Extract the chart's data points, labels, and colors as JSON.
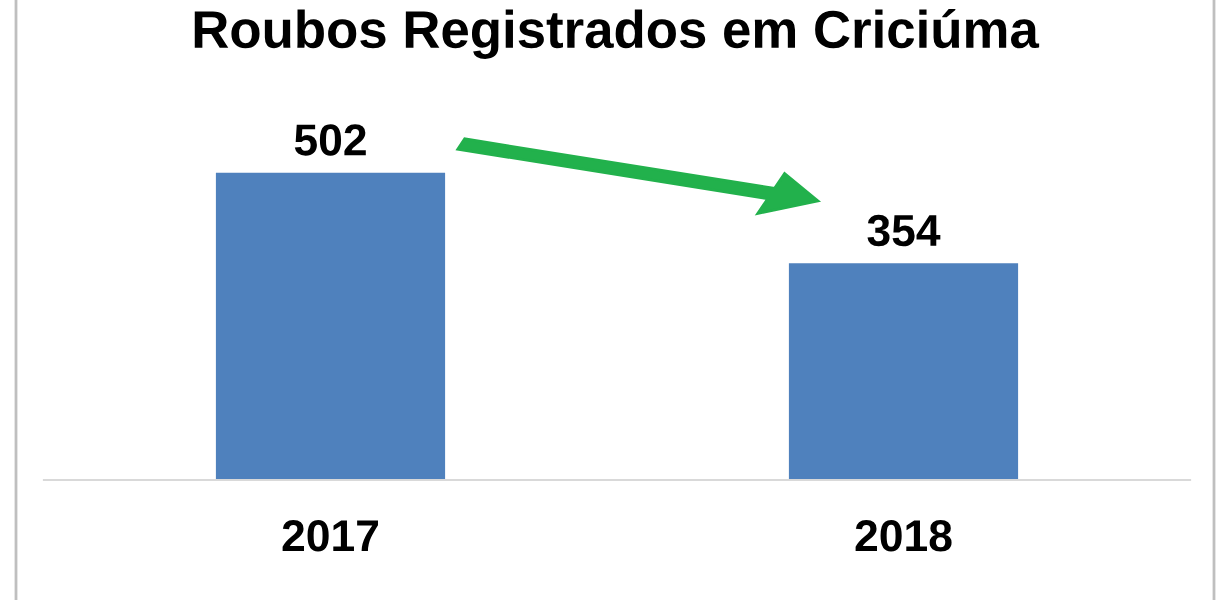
{
  "chart_data": {
    "type": "bar",
    "title": "Roubos Registrados em Criciúma",
    "categories": [
      "2017",
      "2018"
    ],
    "values": [
      502,
      354
    ],
    "color": "#4f81bd",
    "data_labels": true,
    "grid": false,
    "legend": false
  }
}
